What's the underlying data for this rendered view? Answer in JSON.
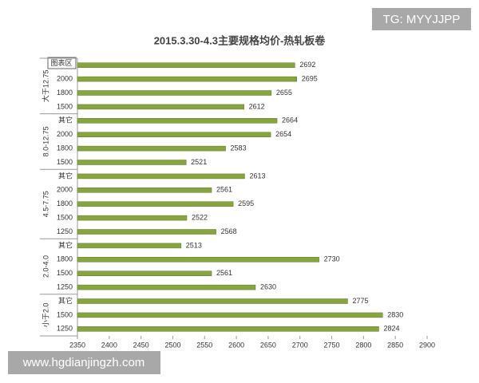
{
  "chart_data": {
    "type": "bar",
    "title": "2015.3.30-4.3主要规格均价-热轧板卷",
    "chart_area_label": "图表区",
    "watermarks": {
      "top_right": "TG: MYYJJPP",
      "bottom_left": "www.hgdianjingzh.com"
    },
    "color": "#86a53f",
    "groups": [
      {
        "name": "大于12.75",
        "categories": [
          null,
          "2000",
          "1800",
          "1500"
        ],
        "values": [
          2692,
          2695,
          2655,
          2612
        ]
      },
      {
        "name": "8.0-12.75",
        "categories": [
          "其它",
          "2000",
          "1800",
          "1500"
        ],
        "values": [
          2664,
          2654,
          2583,
          2521
        ]
      },
      {
        "name": "4.5-7.75",
        "categories": [
          "其它",
          "2000",
          "1800",
          "1500",
          "1250"
        ],
        "values": [
          2613,
          2561,
          2595,
          2522,
          2568
        ]
      },
      {
        "name": "2.0-4.0",
        "categories": [
          "其它",
          "1800",
          "1500",
          "1250"
        ],
        "values": [
          2513,
          2730,
          2561,
          2630
        ]
      },
      {
        "name": "小于2.0",
        "categories": [
          "其它",
          "1500",
          "1250"
        ],
        "values": [
          2775,
          2830,
          2824
        ]
      }
    ],
    "xlim": [
      2350,
      2900
    ],
    "xticks": [
      2350,
      2400,
      2450,
      2500,
      2550,
      2600,
      2650,
      2700,
      2750,
      2800,
      2850,
      2900
    ]
  }
}
